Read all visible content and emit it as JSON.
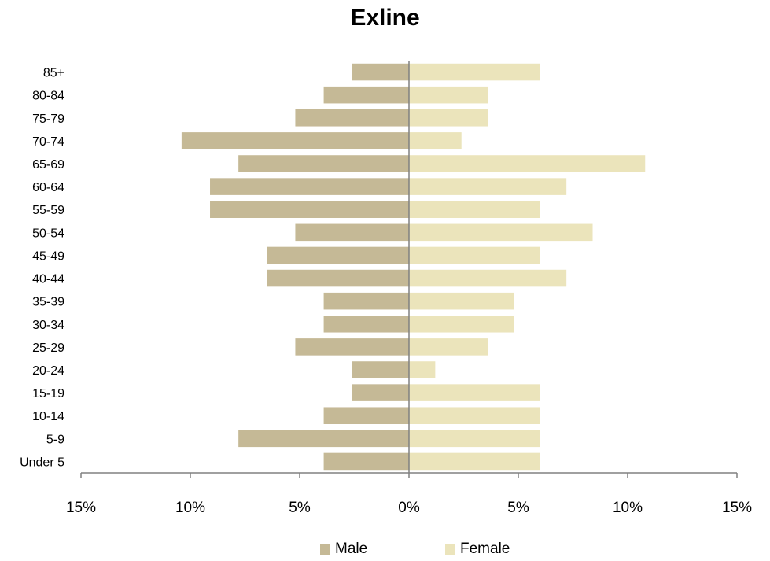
{
  "chart_data": {
    "type": "bar",
    "orientation": "horizontal",
    "title": "Exline",
    "xlabel": "",
    "ylabel": "",
    "categories": [
      "Under 5",
      "5-9",
      "10-14",
      "15-19",
      "20-24",
      "25-29",
      "30-34",
      "35-39",
      "40-44",
      "45-49",
      "50-54",
      "55-59",
      "60-64",
      "65-69",
      "70-74",
      "75-79",
      "80-84",
      "85+"
    ],
    "series": [
      {
        "name": "Male",
        "color": "#c5b996",
        "values": [
          -3.9,
          -7.8,
          -3.9,
          -2.6,
          -2.6,
          -5.2,
          -3.9,
          -3.9,
          -6.5,
          -6.5,
          -5.2,
          -9.1,
          -9.1,
          -7.8,
          -10.4,
          -5.2,
          -3.9,
          -2.6
        ]
      },
      {
        "name": "Female",
        "color": "#ebe4bb",
        "values": [
          6.0,
          6.0,
          6.0,
          6.0,
          1.2,
          3.6,
          4.8,
          4.8,
          7.2,
          6.0,
          8.4,
          6.0,
          7.2,
          10.8,
          2.4,
          3.6,
          3.6,
          6.0
        ]
      }
    ],
    "xlim": [
      -15,
      15
    ],
    "xticks": [
      -15,
      -10,
      -5,
      0,
      5,
      10,
      15
    ],
    "xtick_labels": [
      "15%",
      "10%",
      "5%",
      "0%",
      "5%",
      "10%",
      "15%"
    ],
    "grid": false,
    "legend_position": "bottom"
  }
}
